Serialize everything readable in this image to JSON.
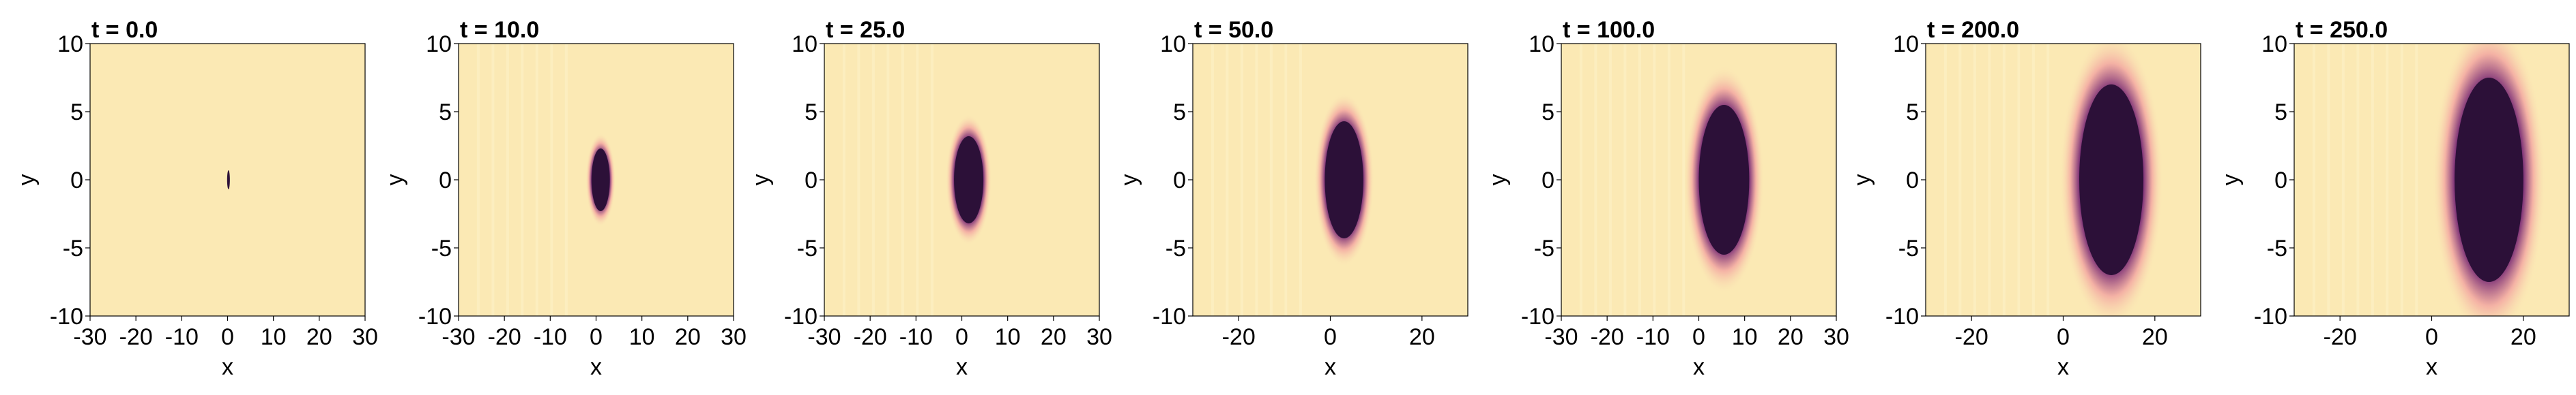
{
  "colors": {
    "background": "#fbe9b4",
    "blob": "#2c1038",
    "halo_inner": "#7a2f76",
    "halo_outer": "#f3a8a2",
    "axes": "#000000"
  },
  "chart_data": [
    {
      "type": "heatmap",
      "title": "t = 0.0",
      "xlabel": "x",
      "ylabel": "y",
      "xlim": [
        -30,
        30
      ],
      "ylim": [
        -10,
        10
      ],
      "xticks": [
        -30,
        -20,
        -10,
        0,
        10,
        20,
        30
      ],
      "yticks": [
        -10,
        -5,
        0,
        5,
        10
      ],
      "xtick_labels": [
        "-30",
        "-20",
        "-10",
        "0",
        "10",
        "20",
        "30"
      ],
      "ytick_labels": [
        "-10",
        "-5",
        "0",
        "5",
        "10"
      ],
      "blob": {
        "cx": 0.2,
        "cy": 0.0,
        "rx": 0.3,
        "ry": 0.7
      },
      "halo": 0.0
    },
    {
      "type": "heatmap",
      "title": "t = 10.0",
      "xlabel": "x",
      "ylabel": "y",
      "xlim": [
        -30,
        30
      ],
      "ylim": [
        -10,
        10
      ],
      "xticks": [
        -30,
        -20,
        -10,
        0,
        10,
        20,
        30
      ],
      "yticks": [
        -10,
        -5,
        0,
        5,
        10
      ],
      "xtick_labels": [
        "-30",
        "-20",
        "-10",
        "0",
        "10",
        "20",
        "30"
      ],
      "ytick_labels": [
        "-10",
        "-5",
        "0",
        "5",
        "10"
      ],
      "blob": {
        "cx": 1.0,
        "cy": 0.0,
        "rx": 2.0,
        "ry": 2.3
      },
      "halo": 0.7
    },
    {
      "type": "heatmap",
      "title": "t = 25.0",
      "xlabel": "x",
      "ylabel": "y",
      "xlim": [
        -30,
        30
      ],
      "ylim": [
        -10,
        10
      ],
      "xticks": [
        -30,
        -20,
        -10,
        0,
        10,
        20,
        30
      ],
      "yticks": [
        -10,
        -5,
        0,
        5,
        10
      ],
      "xtick_labels": [
        "-30",
        "-20",
        "-10",
        "0",
        "10",
        "20",
        "30"
      ],
      "ytick_labels": [
        "-10",
        "-5",
        "0",
        "5",
        "10"
      ],
      "blob": {
        "cx": 1.5,
        "cy": 0.0,
        "rx": 3.2,
        "ry": 3.2
      },
      "halo": 1.0
    },
    {
      "type": "heatmap",
      "title": "t = 50.0",
      "xlabel": "x",
      "ylabel": "y",
      "xlim": [
        -30,
        30
      ],
      "ylim": [
        -10,
        10
      ],
      "xticks": [
        -20,
        0,
        20
      ],
      "yticks": [
        -10,
        -5,
        0,
        5,
        10
      ],
      "xtick_labels": [
        "-20",
        "0",
        "20"
      ],
      "ytick_labels": [
        "-10",
        "-5",
        "0",
        "5",
        "10"
      ],
      "blob": {
        "cx": 3.0,
        "cy": 0.0,
        "rx": 4.2,
        "ry": 4.3
      },
      "halo": 1.3
    },
    {
      "type": "heatmap",
      "title": "t = 100.0",
      "xlabel": "x",
      "ylabel": "y",
      "xlim": [
        -30,
        30
      ],
      "ylim": [
        -10,
        10
      ],
      "xticks": [
        -30,
        -20,
        -10,
        0,
        10,
        20,
        30
      ],
      "yticks": [
        -10,
        -5,
        0,
        5,
        10
      ],
      "xtick_labels": [
        "-30",
        "-20",
        "-10",
        "0",
        "10",
        "20",
        "30"
      ],
      "ytick_labels": [
        "-10",
        "-5",
        "0",
        "5",
        "10"
      ],
      "blob": {
        "cx": 5.5,
        "cy": 0.0,
        "rx": 5.5,
        "ry": 5.5
      },
      "halo": 1.8
    },
    {
      "type": "heatmap",
      "title": "t = 200.0",
      "xlabel": "x",
      "ylabel": "y",
      "xlim": [
        -30,
        30
      ],
      "ylim": [
        -10,
        10
      ],
      "xticks": [
        -20,
        0,
        20
      ],
      "yticks": [
        -10,
        -5,
        0,
        5,
        10
      ],
      "xtick_labels": [
        "-20",
        "0",
        "20"
      ],
      "ytick_labels": [
        "-10",
        "-5",
        "0",
        "5",
        "10"
      ],
      "blob": {
        "cx": 10.5,
        "cy": 0.0,
        "rx": 7.0,
        "ry": 7.0
      },
      "halo": 2.4
    },
    {
      "type": "heatmap",
      "title": "t = 250.0",
      "xlabel": "x",
      "ylabel": "y",
      "xlim": [
        -30,
        30
      ],
      "ylim": [
        -10,
        10
      ],
      "xticks": [
        -20,
        0,
        20
      ],
      "yticks": [
        -10,
        -5,
        0,
        5,
        10
      ],
      "xtick_labels": [
        "-20",
        "0",
        "20"
      ],
      "ytick_labels": [
        "-10",
        "-5",
        "0",
        "5",
        "10"
      ],
      "blob": {
        "cx": 12.5,
        "cy": 0.0,
        "rx": 7.5,
        "ry": 7.5
      },
      "halo": 2.7
    }
  ]
}
